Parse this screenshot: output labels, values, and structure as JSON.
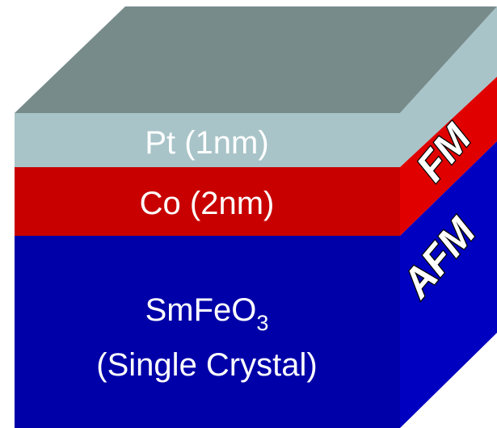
{
  "layers": {
    "pt": {
      "label": "Pt (1nm)"
    },
    "co": {
      "label": "Co (2nm)"
    },
    "substrate": {
      "formula_main": "SmFeO",
      "formula_subscript": "3",
      "label_line2": "(Single Crystal)"
    }
  },
  "side_labels": {
    "fm": "FM",
    "afm": "AFM"
  },
  "colors": {
    "pt_front": "#a8c4c8",
    "pt_top": "#788b8b",
    "pt_side": "#a8c4c8",
    "co_front": "#c80000",
    "co_side": "#e00000",
    "sub_front": "#0000a8",
    "sub_side": "#0000c0"
  }
}
